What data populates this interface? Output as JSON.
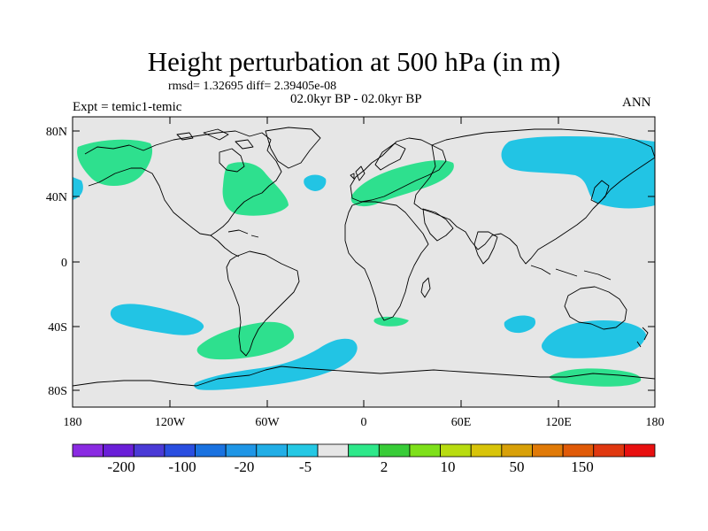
{
  "title": "Height perturbation at 500 hPa (in m)",
  "stats": "rmsd= 1.32695 diff= 2.39405e-08",
  "subtitle": "02.0kyr BP - 02.0kyr BP",
  "experiment": "Expt = temic1-temic",
  "season": "ANN",
  "map": {
    "lon_range": [
      -180,
      180
    ],
    "lat_range": [
      -90,
      90
    ],
    "lat_ticks": [
      "80N",
      "40N",
      "0",
      "40S",
      "80S"
    ],
    "lon_ticks": [
      "180",
      "120W",
      "60W",
      "0",
      "60E",
      "120E",
      "180"
    ],
    "background_color": "#e6e6e6",
    "anomaly_regions": [
      {
        "name": "pacific-north-positive",
        "sign": "positive"
      },
      {
        "name": "north-america-positive",
        "sign": "positive"
      },
      {
        "name": "europe-positive",
        "sign": "positive"
      },
      {
        "name": "siberia-negative",
        "sign": "negative"
      },
      {
        "name": "north-atlantic-negative",
        "sign": "negative"
      },
      {
        "name": "south-pacific-negative",
        "sign": "negative"
      },
      {
        "name": "south-america-positive",
        "sign": "positive"
      },
      {
        "name": "southern-ocean-negative",
        "sign": "negative"
      },
      {
        "name": "south-africa-positive",
        "sign": "positive"
      },
      {
        "name": "indian-ocean-negative",
        "sign": "negative"
      },
      {
        "name": "australia-negative",
        "sign": "negative"
      },
      {
        "name": "antarctic-coast-positive",
        "sign": "positive"
      }
    ]
  },
  "colorbar": {
    "labels": [
      "-200",
      "-100",
      "-20",
      "-5",
      "2",
      "10",
      "50",
      "150"
    ],
    "colors": [
      "#8a2be2",
      "#6a1fd8",
      "#4a3ad6",
      "#2a4ee0",
      "#1a72e0",
      "#1f96e6",
      "#22aee6",
      "#25c8e4",
      "#e6e6e6",
      "#2ee88a",
      "#38cc38",
      "#7ee01a",
      "#b8dc10",
      "#d8c40a",
      "#d8a008",
      "#e07a08",
      "#e05a08",
      "#e03810",
      "#e81010"
    ]
  },
  "colors": {
    "positive": "#2ee08e",
    "negative": "#22c4e4",
    "coast": "#000000"
  }
}
